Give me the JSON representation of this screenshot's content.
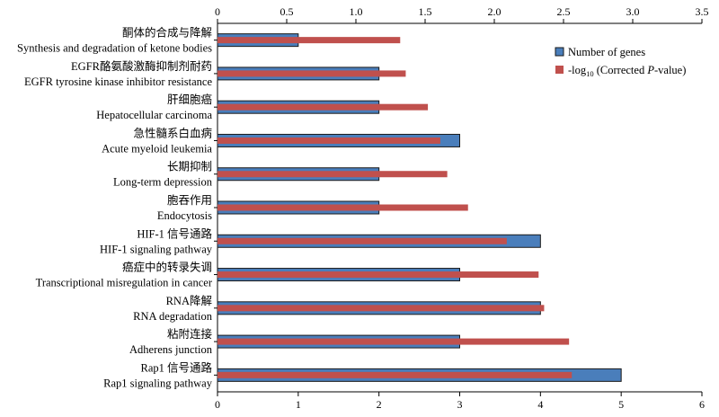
{
  "chart_data": {
    "type": "bar",
    "orientation": "horizontal",
    "categories": [
      {
        "zh": "酮体的合成与降解",
        "en": "Synthesis and degradation of ketone bodies"
      },
      {
        "zh": "EGFR酪氨酸激酶抑制剂耐药",
        "en": "EGFR tyrosine kinase inhibitor resistance"
      },
      {
        "zh": "肝细胞癌",
        "en": "Hepatocellular carcinoma"
      },
      {
        "zh": "急性髓系白血病",
        "en": "Acute myeloid leukemia"
      },
      {
        "zh": "长期抑制",
        "en": "Long-term depression"
      },
      {
        "zh": "胞吞作用",
        "en": "Endocytosis"
      },
      {
        "zh": "HIF-1 信号通路",
        "en": "HIF-1 signaling pathway"
      },
      {
        "zh": "癌症中的转录失调",
        "en": "Transcriptional misregulation in cancer"
      },
      {
        "zh": "RNA降解",
        "en": "RNA degradation"
      },
      {
        "zh": "粘附连接",
        "en": "Adherens junction"
      },
      {
        "zh": "Rap1 信号通路",
        "en": "Rap1 signaling pathway"
      }
    ],
    "series": [
      {
        "name": "Number of genes",
        "axis": "bottom",
        "color": "#4a7ebb",
        "values": [
          1,
          2,
          2,
          3,
          2,
          2,
          4,
          3,
          4,
          3,
          5
        ]
      },
      {
        "name": "-log10 (Corrected P-value)",
        "axis": "top",
        "color": "#c0504d",
        "values": [
          1.32,
          1.36,
          1.52,
          1.61,
          1.66,
          1.81,
          2.09,
          2.32,
          2.36,
          2.54,
          2.56
        ]
      }
    ],
    "top_axis": {
      "min": 0,
      "max": 3.5,
      "ticks": [
        "0",
        "0.5",
        "1.0",
        "1.5",
        "2.0",
        "2.5",
        "3.0",
        "3.5"
      ]
    },
    "bottom_axis": {
      "min": 0,
      "max": 6,
      "ticks": [
        "0",
        "1",
        "2",
        "3",
        "4",
        "5",
        "6"
      ]
    },
    "legend": {
      "position": "top-right",
      "entries": [
        {
          "text": "Number of genes"
        },
        {
          "pre": "-log",
          "sub": "10",
          "mid": " (Corrected ",
          "ital": "P",
          "post": "-value)"
        }
      ]
    }
  }
}
